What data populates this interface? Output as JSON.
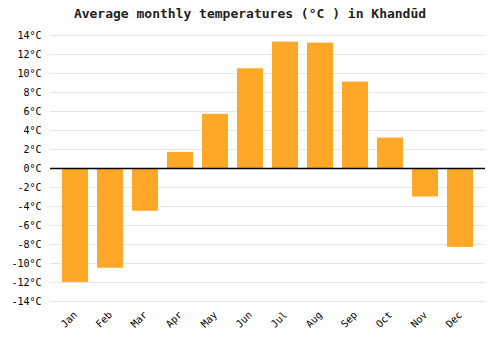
{
  "chart_data": {
    "type": "bar",
    "title": "Average monthly temperatures (°C ) in Khandūd",
    "categories": [
      "Jan",
      "Feb",
      "Mar",
      "Apr",
      "May",
      "Jun",
      "Jul",
      "Aug",
      "Sep",
      "Oct",
      "Nov",
      "Dec"
    ],
    "values": [
      -12,
      -10.5,
      -4.5,
      1.7,
      5.7,
      10.5,
      13.3,
      13.2,
      9.1,
      3.2,
      -3.0,
      -8.3
    ],
    "color": "#FFA726",
    "ylim": [
      -14,
      14
    ],
    "yticks": [
      {
        "value": -14,
        "label": "-14°C"
      },
      {
        "value": -12,
        "label": "-12°C"
      },
      {
        "value": -10,
        "label": "-10°C"
      },
      {
        "value": -8,
        "label": "-8°C"
      },
      {
        "value": -6,
        "label": "-6°C"
      },
      {
        "value": -4,
        "label": "-4°C"
      },
      {
        "value": -2,
        "label": "-2°C"
      },
      {
        "value": 0,
        "label": "0°C"
      },
      {
        "value": 2,
        "label": "2°C"
      },
      {
        "value": 4,
        "label": "4°C"
      },
      {
        "value": 6,
        "label": "6°C"
      },
      {
        "value": 8,
        "label": "8°C"
      },
      {
        "value": 10,
        "label": "10°C"
      },
      {
        "value": 12,
        "label": "12°C"
      },
      {
        "value": 14,
        "label": "14°C"
      }
    ],
    "grid": true
  }
}
